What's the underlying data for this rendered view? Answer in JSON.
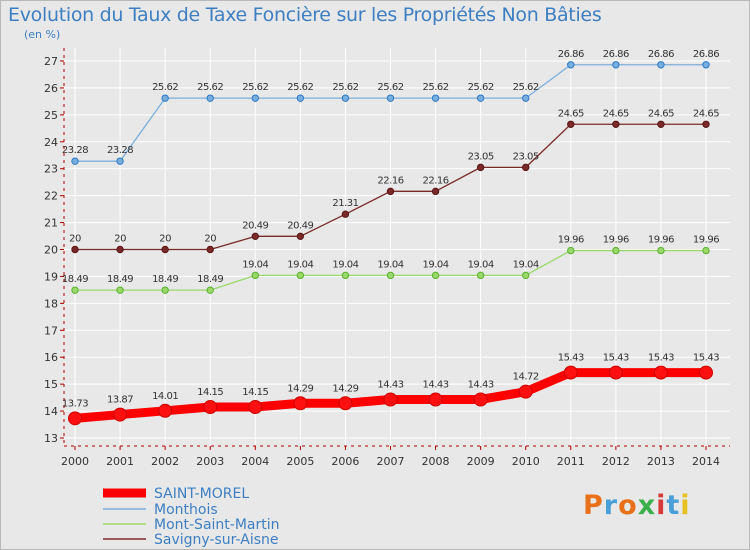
{
  "header": {
    "title": "Evolution du Taux de Taxe Foncière sur les Propriétés Non Bâties",
    "subtitle": "(en %)"
  },
  "logo": {
    "text": "Proxiti",
    "colors": [
      "#e8701a",
      "#4a9fd8",
      "#e8701a",
      "#3ab04a",
      "#d83a3a",
      "#4a9fd8",
      "#e8c020"
    ]
  },
  "chart_data": {
    "type": "line",
    "title": "Evolution du Taux de Taxe Foncière sur les Propriétés Non Bâties",
    "ylabel": "(en %)",
    "xlabel": "",
    "ylim": [
      13,
      27
    ],
    "yticks": [
      13,
      14,
      15,
      16,
      17,
      18,
      19,
      20,
      21,
      22,
      23,
      24,
      25,
      26,
      27
    ],
    "grid": true,
    "legend_position": "bottom-left",
    "x": [
      "2000",
      "2001",
      "2002",
      "2003",
      "2004",
      "2005",
      "2006",
      "2007",
      "2008",
      "2009",
      "2010",
      "2011",
      "2012",
      "2013",
      "2014"
    ],
    "series": [
      {
        "name": "SAINT-MOREL",
        "color": "#ff0000",
        "values": [
          13.73,
          13.87,
          14.01,
          14.15,
          14.15,
          14.29,
          14.29,
          14.43,
          14.43,
          14.43,
          14.72,
          15.43,
          15.43,
          15.43,
          15.43
        ],
        "labels": [
          "13.73",
          "13.87",
          "14.01",
          "14.15",
          "14.15",
          "14.29",
          "14.29",
          "14.43",
          "14.43",
          "14.43",
          "14.72",
          "15.43",
          "15.43",
          "15.43",
          "15.43"
        ]
      },
      {
        "name": "Monthois",
        "color": "#7aaedc",
        "values": [
          23.28,
          23.28,
          25.62,
          25.62,
          25.62,
          25.62,
          25.62,
          25.62,
          25.62,
          25.62,
          25.62,
          26.86,
          26.86,
          26.86,
          26.86
        ],
        "labels": [
          "23.28",
          "23.28",
          "25.62",
          "25.62",
          "25.62",
          "25.62",
          "25.62",
          "25.62",
          "25.62",
          "25.62",
          "25.62",
          "26.86",
          "26.86",
          "26.86",
          "26.86"
        ]
      },
      {
        "name": "Mont-Saint-Martin",
        "color": "#9ad86a",
        "values": [
          18.49,
          18.49,
          18.49,
          18.49,
          19.04,
          19.04,
          19.04,
          19.04,
          19.04,
          19.04,
          19.04,
          19.96,
          19.96,
          19.96,
          19.96
        ],
        "labels": [
          "18.49",
          "18.49",
          "18.49",
          "18.49",
          "19.04",
          "19.04",
          "19.04",
          "19.04",
          "19.04",
          "19.04",
          "19.04",
          "19.96",
          "19.96",
          "19.96",
          "19.96"
        ]
      },
      {
        "name": "Savigny-sur-Aisne",
        "color": "#7a2a2a",
        "values": [
          20,
          20,
          20,
          20,
          20.49,
          20.49,
          21.31,
          22.16,
          22.16,
          23.05,
          23.05,
          24.65,
          24.65,
          24.65,
          24.65
        ],
        "labels": [
          "20",
          "20",
          "20",
          "20",
          "20.49",
          "20.49",
          "21.31",
          "22.16",
          "22.16",
          "23.05",
          "23.05",
          "24.65",
          "24.65",
          "24.65",
          "24.65"
        ]
      }
    ]
  }
}
